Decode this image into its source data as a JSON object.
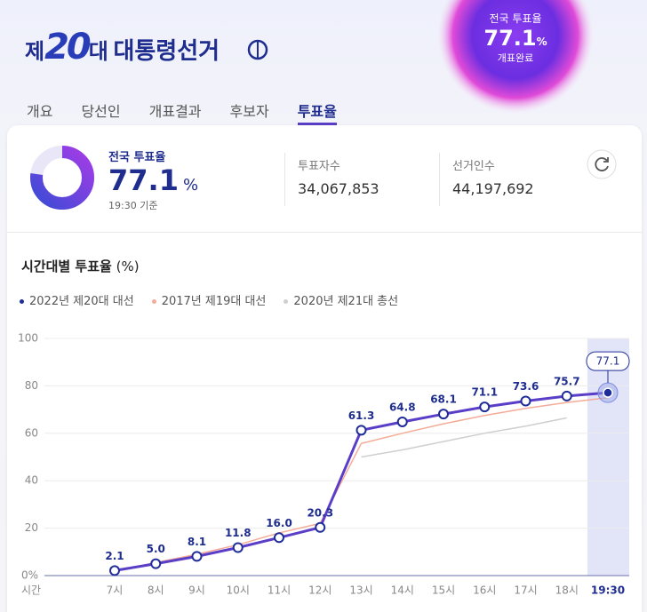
{
  "header": {
    "logo": {
      "prefix": "제",
      "number": "20",
      "suffix": "대",
      "name": "대통령선거"
    },
    "badge": {
      "label": "전국 투표율",
      "value": "77.1",
      "unit": "%",
      "status": "개표완료"
    }
  },
  "tabs": [
    "개요",
    "당선인",
    "개표결과",
    "후보자",
    "투표율"
  ],
  "active_tab": 4,
  "summary": {
    "label": "전국 투표율",
    "rate": 77.1,
    "unit": "%",
    "time": "19:30 기준",
    "voters_label": "투표자수",
    "voters": "34,067,853",
    "electors_label": "선거인수",
    "electors": "44,197,692"
  },
  "chart_data": {
    "type": "line",
    "title": "시간대별 투표율",
    "unit_label": "(%)",
    "x_label": "시간",
    "categories": [
      "7시",
      "8시",
      "9시",
      "10시",
      "11시",
      "12시",
      "13시",
      "14시",
      "15시",
      "16시",
      "17시",
      "18시",
      "19:30"
    ],
    "series": [
      {
        "name": "2022년 제20대 대선",
        "color": "#5a3ec8",
        "values": [
          2.1,
          5.0,
          8.1,
          11.8,
          16.0,
          20.3,
          61.3,
          64.8,
          68.1,
          71.1,
          73.6,
          75.7,
          77.1
        ],
        "value_labels": [
          "2.1",
          "5.0",
          "8.1",
          "11.8",
          "16.0",
          "20.3",
          "61.3",
          "64.8",
          "68.1",
          "71.1",
          "73.6",
          "75.7",
          "77.1"
        ]
      },
      {
        "name": "2017년 제19대 대선",
        "color": "#f4ab98",
        "values": [
          1.9,
          5.5,
          9.0,
          13.0,
          18.0,
          22.0,
          55.7,
          60.0,
          64.0,
          67.5,
          70.5,
          73.0,
          75.0
        ]
      },
      {
        "name": "2020년 제21대 총선",
        "color": "#cfcfcf",
        "values": [
          null,
          null,
          null,
          null,
          null,
          null,
          50.0,
          53.0,
          56.5,
          60.0,
          63.0,
          66.5,
          null
        ]
      }
    ],
    "ylim": [
      0,
      100
    ],
    "yticks": [
      {
        "value": 0,
        "label": "0%"
      },
      20,
      40,
      60,
      80,
      100
    ],
    "grid": true,
    "highlight_category": 12
  }
}
